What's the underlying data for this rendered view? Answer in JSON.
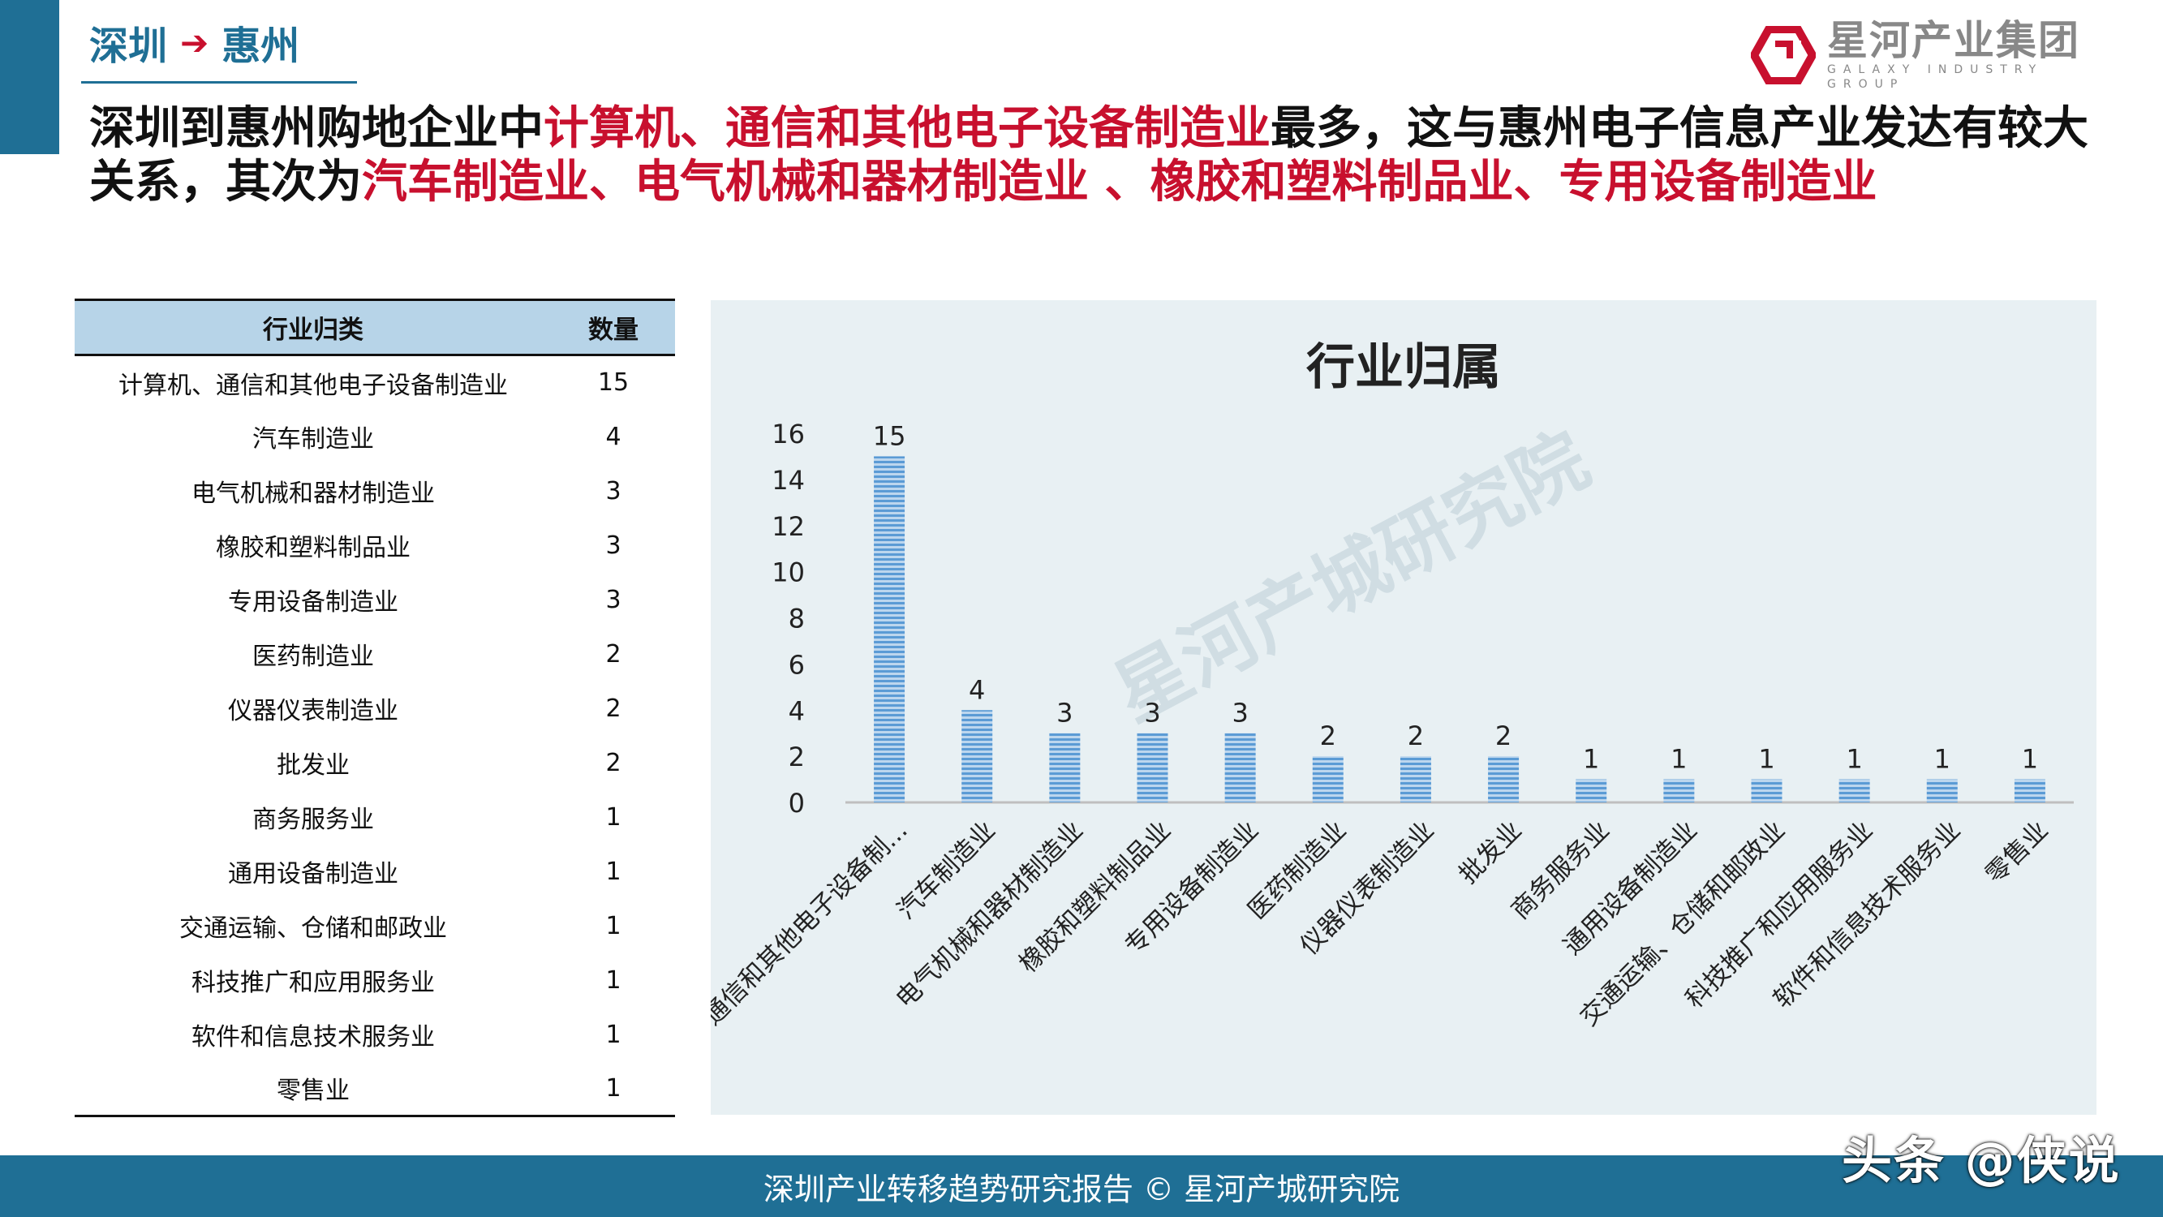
{
  "breadcrumb": {
    "from": "深圳",
    "to": "惠州",
    "arrow": "➔"
  },
  "logo": {
    "name": "星河产业集团",
    "english": "GALAXY INDUSTRY GROUP"
  },
  "headline": {
    "p1": "深圳到惠州购地企业中",
    "p2": "计算机、通信和其他电子设备制造业",
    "p3": "最多，这与惠州电子信息产业发达有较大关系，其次为",
    "p4": "汽车制造业、电气机械和器材制造业 、橡胶和塑料制品业、专用设备制造业"
  },
  "table": {
    "headers": [
      "行业归类",
      "数量"
    ],
    "rows": [
      [
        "计算机、通信和其他电子设备制造业",
        "15"
      ],
      [
        "汽车制造业",
        "4"
      ],
      [
        "电气机械和器材制造业",
        "3"
      ],
      [
        "橡胶和塑料制品业",
        "3"
      ],
      [
        "专用设备制造业",
        "3"
      ],
      [
        "医药制造业",
        "2"
      ],
      [
        "仪器仪表制造业",
        "2"
      ],
      [
        "批发业",
        "2"
      ],
      [
        "商务服务业",
        "1"
      ],
      [
        "通用设备制造业",
        "1"
      ],
      [
        "交通运输、仓储和邮政业",
        "1"
      ],
      [
        "科技推广和应用服务业",
        "1"
      ],
      [
        "软件和信息技术服务业",
        "1"
      ],
      [
        "零售业",
        "1"
      ]
    ]
  },
  "chart_data": {
    "type": "bar",
    "title": "行业归属",
    "categories": [
      "计算机、通信和其他电子设备制...",
      "汽车制造业",
      "电气机械和器材制造业",
      "橡胶和塑料制品业",
      "专用设备制造业",
      "医药制造业",
      "仪器仪表制造业",
      "批发业",
      "商务服务业",
      "通用设备制造业",
      "交通运输、仓储和邮政业",
      "科技推广和应用服务业",
      "软件和信息技术服务业",
      "零售业"
    ],
    "values": [
      15,
      4,
      3,
      3,
      3,
      2,
      2,
      2,
      1,
      1,
      1,
      1,
      1,
      1
    ],
    "yticks": [
      0,
      2,
      4,
      6,
      8,
      10,
      12,
      14,
      16
    ],
    "ylim": [
      0,
      16
    ],
    "bar_color": "#5b9bd5",
    "grid": false,
    "legend": "none"
  },
  "chart_watermark": "星河产城研究院",
  "footer": {
    "text": "深圳产业转移趋势研究报告 © 星河产城研究院"
  },
  "corner_watermark": "头条 @侠说",
  "colors": {
    "brand_blue": "#1f6f95",
    "highlight_red": "#c8102e",
    "header_blue": "#b7d4e8"
  }
}
